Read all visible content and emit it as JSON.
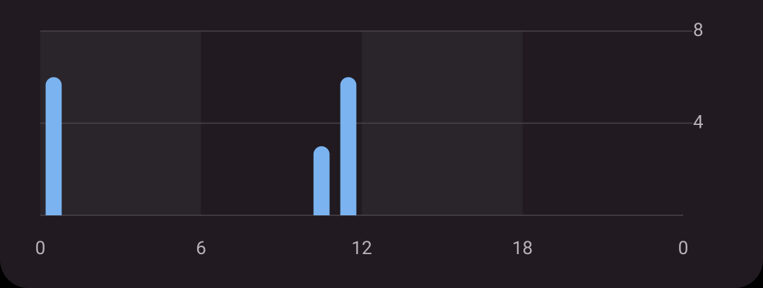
{
  "chart_data": {
    "type": "bar",
    "x": [
      0,
      10,
      11
    ],
    "values": [
      6,
      3,
      6
    ],
    "color": "#7ab3f0",
    "xlim": [
      0,
      24
    ],
    "xticks": [
      0,
      6,
      12,
      18,
      {
        "value": 24,
        "label": "0"
      }
    ],
    "ylim": [
      0,
      8
    ],
    "yticks": [
      4,
      8
    ],
    "grid": true
  }
}
